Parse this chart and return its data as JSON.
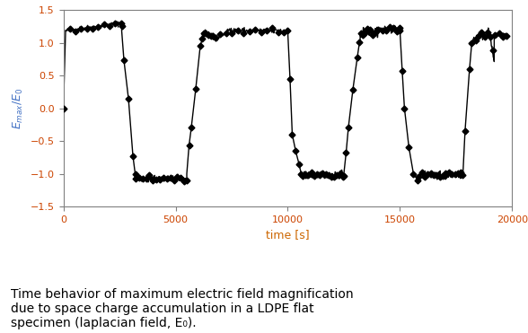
{
  "title": "Time behavior of maximum electric field magnification\ndue to space charge accumulation in a LDPE flat\nspecimen (laplacian field, E₀).",
  "xlabel": "time [s]",
  "ylabel": "E$_{max}$/E$_0$",
  "xlim": [
    0,
    20000
  ],
  "ylim": [
    -1.5,
    1.5
  ],
  "xticks": [
    0,
    5000,
    10000,
    15000,
    20000
  ],
  "yticks": [
    -1.5,
    -1.0,
    -0.5,
    0.0,
    0.5,
    1.0,
    1.5
  ],
  "line_color": "black",
  "marker": "D",
  "markersize": 3.5,
  "linewidth": 1.0,
  "figsize": [
    5.88,
    3.71
  ],
  "dpi": 100,
  "background_color": "#ffffff"
}
